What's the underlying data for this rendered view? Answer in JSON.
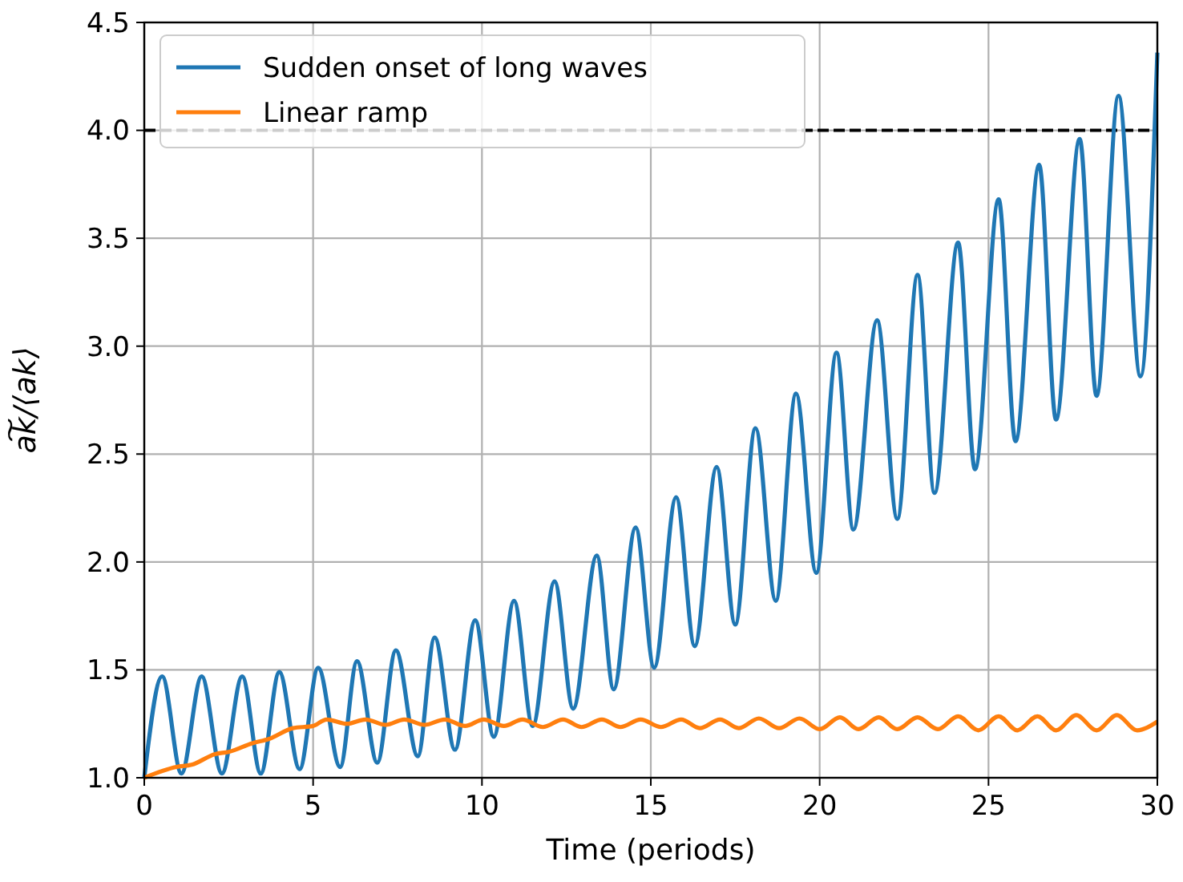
{
  "chart_data": {
    "type": "line",
    "xlabel": "Time (periods)",
    "ylabel": "a͠k/⟨ak⟩",
    "xlim": [
      0,
      30
    ],
    "xticks": [
      0,
      5,
      10,
      15,
      20,
      25,
      30
    ],
    "ylim": [
      1.0,
      4.5
    ],
    "yticks": [
      {
        "value": 1,
        "label": "1.0"
      },
      {
        "value": 1.5,
        "label": "1.5"
      },
      {
        "value": 2,
        "label": "2.0"
      },
      {
        "value": 2.5,
        "label": "2.5"
      },
      {
        "value": 3,
        "label": "3.0"
      },
      {
        "value": 3.5,
        "label": "3.5"
      },
      {
        "value": 4,
        "label": "4.0"
      },
      {
        "value": 4.5,
        "label": "4.5"
      }
    ],
    "grid": true,
    "legend": "top left",
    "line_style": "solid",
    "marker": "none",
    "ref_lines": [
      {
        "axis": "y",
        "value": 4.0,
        "color": "#000000",
        "line_style": "dashed"
      }
    ],
    "series": [
      {
        "name": "Sudden onset of long waves",
        "color": "#1f77b4",
        "x": [
          0,
          0.53,
          1.1,
          1.7,
          2.3,
          2.9,
          3.45,
          4.0,
          4.6,
          5.15,
          5.8,
          6.3,
          6.9,
          7.45,
          8.1,
          8.6,
          9.2,
          9.8,
          10.35,
          10.95,
          11.5,
          12.15,
          12.7,
          13.4,
          13.9,
          14.55,
          15.1,
          15.75,
          16.3,
          16.95,
          17.5,
          18.1,
          18.7,
          19.3,
          19.9,
          20.5,
          21.0,
          21.7,
          22.3,
          22.9,
          23.4,
          24.1,
          24.6,
          25.3,
          25.8,
          26.5,
          27.0,
          27.7,
          28.2,
          28.85,
          29.5,
          30
        ],
        "values": [
          1.0,
          1.47,
          1.02,
          1.47,
          1.02,
          1.47,
          1.02,
          1.49,
          1.04,
          1.51,
          1.05,
          1.54,
          1.07,
          1.59,
          1.1,
          1.65,
          1.13,
          1.73,
          1.19,
          1.82,
          1.24,
          1.91,
          1.32,
          2.03,
          1.41,
          2.16,
          1.51,
          2.3,
          1.61,
          2.44,
          1.71,
          2.62,
          1.82,
          2.78,
          1.95,
          2.97,
          2.15,
          3.12,
          2.2,
          3.33,
          2.32,
          3.48,
          2.43,
          3.68,
          2.56,
          3.84,
          2.66,
          3.96,
          2.77,
          4.16,
          2.86,
          4.36
        ]
      },
      {
        "name": "Linear ramp",
        "color": "#ff7f0e",
        "x": [
          0,
          0.95,
          1.4,
          2.1,
          2.5,
          3.2,
          3.7,
          4.4,
          5.0,
          5.4,
          6.0,
          6.55,
          7.15,
          7.7,
          8.3,
          8.9,
          9.5,
          10.05,
          10.65,
          11.2,
          11.8,
          12.4,
          12.95,
          13.55,
          14.1,
          14.7,
          15.3,
          15.9,
          16.45,
          17.05,
          17.6,
          18.2,
          18.8,
          19.4,
          20.0,
          20.6,
          21.15,
          21.75,
          22.3,
          22.9,
          23.5,
          24.1,
          24.7,
          25.3,
          25.85,
          26.45,
          27.0,
          27.6,
          28.2,
          28.8,
          29.4,
          30
        ],
        "values": [
          1.0,
          1.05,
          1.06,
          1.11,
          1.12,
          1.16,
          1.18,
          1.23,
          1.24,
          1.27,
          1.25,
          1.27,
          1.245,
          1.27,
          1.245,
          1.27,
          1.24,
          1.27,
          1.24,
          1.27,
          1.235,
          1.27,
          1.235,
          1.27,
          1.235,
          1.27,
          1.235,
          1.27,
          1.23,
          1.27,
          1.23,
          1.275,
          1.23,
          1.275,
          1.225,
          1.28,
          1.225,
          1.28,
          1.225,
          1.28,
          1.225,
          1.285,
          1.22,
          1.285,
          1.22,
          1.285,
          1.22,
          1.29,
          1.22,
          1.29,
          1.22,
          1.26
        ]
      }
    ]
  }
}
